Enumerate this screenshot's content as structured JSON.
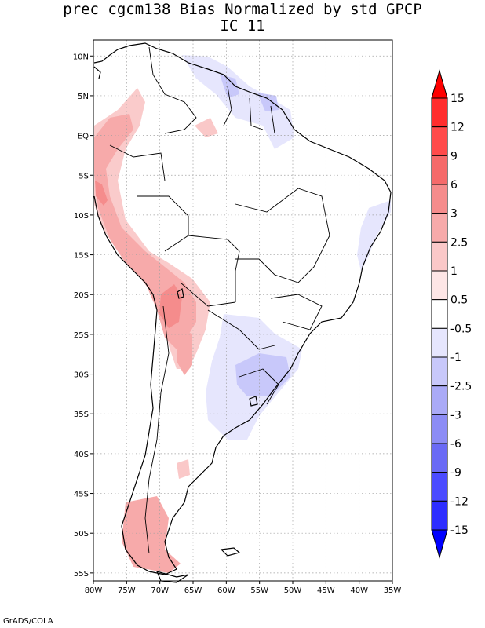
{
  "title": {
    "line1": "prec cgcm138 Bias Normalized by std GPCP",
    "line2": "IC 11"
  },
  "map": {
    "lat_labels": [
      "10N",
      "5N",
      "EQ",
      "5S",
      "10S",
      "15S",
      "20S",
      "25S",
      "30S",
      "35S",
      "40S",
      "45S",
      "50S",
      "55S"
    ],
    "lat_values": [
      10,
      5,
      0,
      -5,
      -10,
      -15,
      -20,
      -25,
      -30,
      -35,
      -40,
      -45,
      -50,
      -55
    ],
    "lon_labels": [
      "80W",
      "75W",
      "70W",
      "65W",
      "60W",
      "55W",
      "50W",
      "45W",
      "40W",
      "35W"
    ],
    "lon_values": [
      -80,
      -75,
      -70,
      -65,
      -60,
      -55,
      -50,
      -45,
      -40,
      -35
    ],
    "lat_range": [
      -56,
      12
    ],
    "lon_range": [
      -80,
      -35
    ]
  },
  "colorbar": {
    "labels": [
      "15",
      "12",
      "9",
      "6",
      "3",
      "2.5",
      "1",
      "0.5",
      "-0.5",
      "-1",
      "-2.5",
      "-3",
      "-6",
      "-9",
      "-12",
      "-15"
    ],
    "colors": [
      "#ff0000",
      "#ff2d2d",
      "#ff4b4b",
      "#f56a6a",
      "#f58c8c",
      "#f7aaaa",
      "#fac8c8",
      "#fde6e6",
      "#ffffff",
      "#e6e6fd",
      "#c8c8fa",
      "#aaaaf7",
      "#8c8cf5",
      "#6a6af5",
      "#4b4bff",
      "#2d2dff",
      "#0000ff"
    ]
  },
  "credit": "GrADS/COLA"
}
